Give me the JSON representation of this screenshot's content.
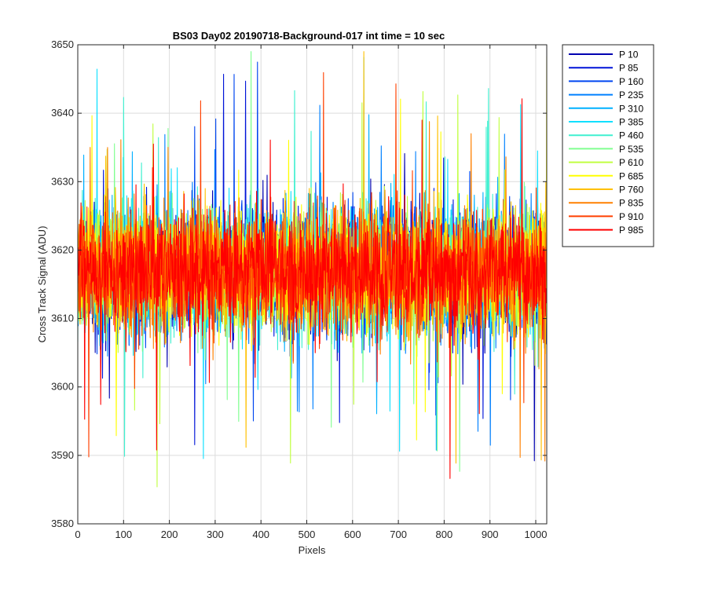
{
  "chart_data": {
    "type": "line",
    "title": "BS03 Day02 20190718-Background-017 int time = 10 sec",
    "xlabel": "Pixels",
    "ylabel": "Cross Track Signal (ADU)",
    "xlim": [
      0,
      1024
    ],
    "ylim": [
      3580,
      3650
    ],
    "xticks": [
      0,
      100,
      200,
      300,
      400,
      500,
      600,
      700,
      800,
      900,
      1000
    ],
    "yticks": [
      3580,
      3590,
      3600,
      3610,
      3620,
      3630,
      3640,
      3650
    ],
    "x_tick_labels": [
      "0",
      "100",
      "200",
      "300",
      "400",
      "500",
      "600",
      "700",
      "800",
      "900",
      "1000"
    ],
    "y_tick_labels": [
      "3580",
      "3590",
      "3600",
      "3610",
      "3620",
      "3630",
      "3640",
      "3650"
    ],
    "grid": true,
    "legend_position": "outside-top-right",
    "x_points": 1024,
    "noise": {
      "mean": 3617,
      "typical_range": [
        3600,
        3635
      ],
      "extreme_range": [
        3585,
        3649
      ]
    },
    "series": [
      {
        "name": "P 10",
        "color": "#0000b0"
      },
      {
        "name": "P 85",
        "color": "#0014d8"
      },
      {
        "name": "P 160",
        "color": "#0046f0"
      },
      {
        "name": "P 235",
        "color": "#0080ff"
      },
      {
        "name": "P 310",
        "color": "#00b0ff"
      },
      {
        "name": "P 385",
        "color": "#10e0ff"
      },
      {
        "name": "P 460",
        "color": "#40f0d0"
      },
      {
        "name": "P 535",
        "color": "#80ff90"
      },
      {
        "name": "P 610",
        "color": "#c0ff40"
      },
      {
        "name": "P 685",
        "color": "#ffff00"
      },
      {
        "name": "P 760",
        "color": "#ffc000"
      },
      {
        "name": "P 835",
        "color": "#ff8000"
      },
      {
        "name": "P 910",
        "color": "#ff4000"
      },
      {
        "name": "P 985",
        "color": "#ff0000"
      }
    ]
  }
}
